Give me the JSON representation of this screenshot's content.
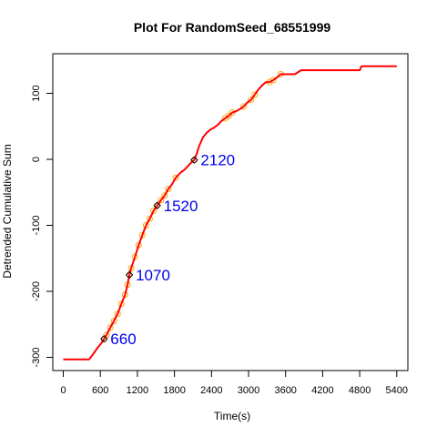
{
  "chart_data": {
    "type": "line",
    "title": "Plot For RandomSeed_68551999",
    "xlabel": "Time(s)",
    "ylabel": "Detrended Cumulative Sum",
    "xlim": [
      -170,
      5580
    ],
    "ylim": [
      -320,
      160
    ],
    "xticks": [
      0,
      600,
      1200,
      1800,
      2400,
      3000,
      3600,
      4200,
      4800,
      5400
    ],
    "yticks": [
      -300,
      -200,
      -100,
      0,
      100
    ],
    "grid": false,
    "colors": {
      "series": "#ff0000",
      "points": "#ffa500",
      "changepoints": "#000000",
      "annotations": "#0000ee"
    },
    "series": [
      {
        "x": [
          0,
          420,
          500,
          560,
          620,
          660,
          700,
          760,
          820,
          880,
          940,
          1000,
          1040,
          1070,
          1100,
          1160,
          1220,
          1280,
          1340,
          1400,
          1460,
          1520,
          1580,
          1640,
          1700,
          1760,
          1820,
          1900,
          1960,
          2020,
          2060,
          2120,
          2160,
          2200,
          2260,
          2320,
          2380,
          2440,
          2500,
          2560,
          2620,
          2680,
          2740,
          2800,
          2860,
          2920,
          2980,
          3040,
          3100,
          3160,
          3220,
          3280,
          3340,
          3400,
          3460,
          3520,
          3580,
          3650,
          3750,
          3850,
          4000,
          4200,
          4400,
          4600,
          4800,
          4830,
          5000,
          5200,
          5400
        ],
        "y": [
          -303,
          -303,
          -293,
          -285,
          -278,
          -272,
          -266,
          -255,
          -245,
          -234,
          -219,
          -205,
          -190,
          -175,
          -165,
          -148,
          -130,
          -115,
          -100,
          -90,
          -78,
          -70,
          -62,
          -55,
          -45,
          -38,
          -28,
          -20,
          -16,
          -10,
          -6,
          -1,
          8,
          20,
          33,
          40,
          45,
          48,
          52,
          58,
          62,
          66,
          71,
          73,
          76,
          80,
          86,
          90,
          98,
          106,
          112,
          117,
          117,
          120,
          124,
          129,
          129,
          129,
          129,
          135,
          135,
          135,
          135,
          135,
          135,
          141,
          141,
          141,
          141
        ]
      }
    ],
    "points": {
      "x": [
        660,
        700,
        760,
        820,
        880,
        940,
        1000,
        1040,
        1070,
        1100,
        1160,
        1220,
        1280,
        1340,
        1400,
        1460,
        1520,
        1580,
        1640,
        1700,
        1820,
        2120,
        2620,
        2680,
        2740,
        2920,
        3040,
        3100,
        3340,
        3400,
        3520
      ],
      "y": [
        -272,
        -266,
        -255,
        -245,
        -234,
        -219,
        -205,
        -190,
        -175,
        -165,
        -148,
        -130,
        -115,
        -100,
        -90,
        -78,
        -70,
        -62,
        -55,
        -45,
        -28,
        -1,
        62,
        66,
        71,
        80,
        90,
        98,
        117,
        120,
        129
      ]
    },
    "changepoints": [
      {
        "x": 660,
        "y": -272,
        "label": "660"
      },
      {
        "x": 1070,
        "y": -175,
        "label": "1070"
      },
      {
        "x": 1520,
        "y": -70,
        "label": "1520"
      },
      {
        "x": 2120,
        "y": -1,
        "label": "2120"
      }
    ]
  }
}
